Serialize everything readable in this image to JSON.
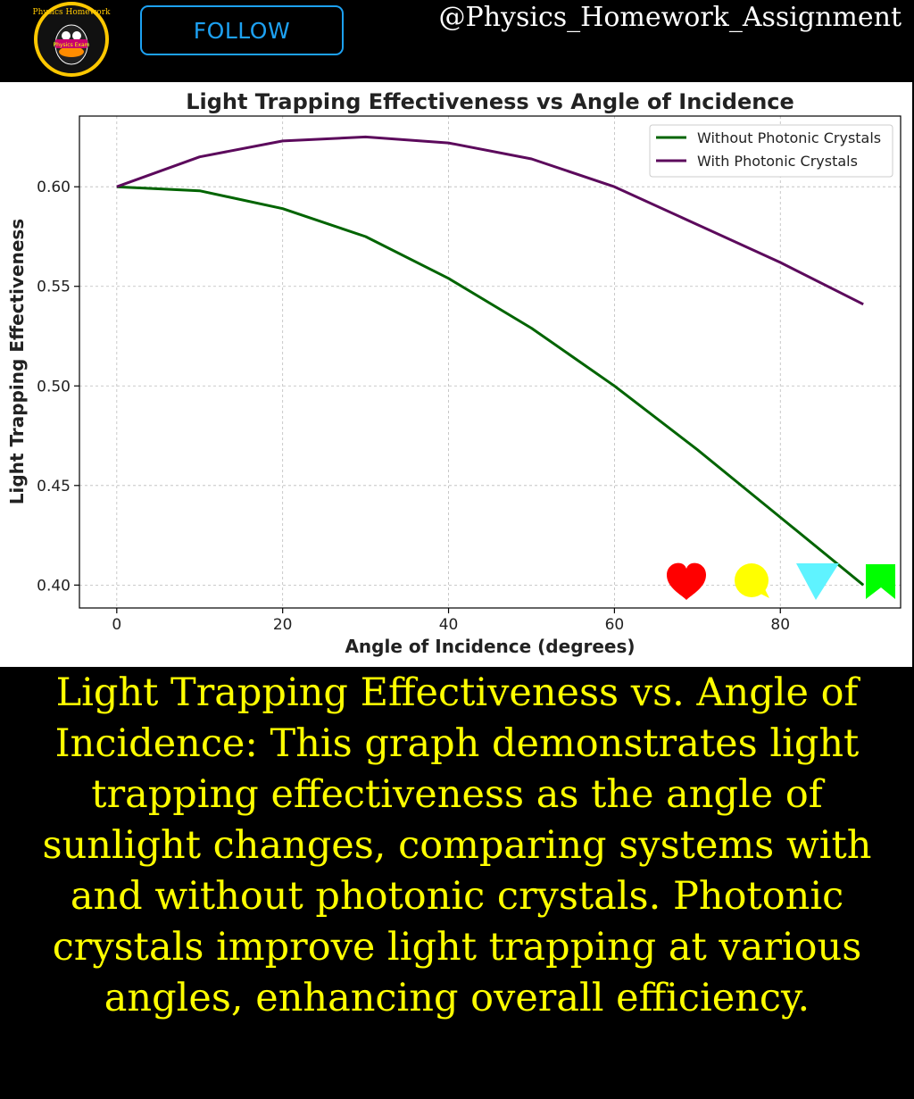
{
  "header": {
    "handle": "@Physics_Homework_Assignment",
    "follow_label": "FOLLOW",
    "avatar_text": "Physics Homework",
    "avatar_badge": "Physics Exam",
    "avatar_icon": "cartoon-duck-logo"
  },
  "chart_data": {
    "type": "line",
    "title": "Light Trapping Effectiveness vs Angle of Incidence",
    "xlabel": "Angle of Incidence (degrees)",
    "ylabel": "Light Trapping Effectiveness",
    "xlim": [
      -4.5,
      94.5
    ],
    "ylim": [
      0.3885,
      0.6355
    ],
    "xticks": [
      0,
      20,
      40,
      60,
      80
    ],
    "yticks": [
      0.4,
      0.45,
      0.5,
      0.55,
      0.6
    ],
    "grid": true,
    "legend_position": "top-right",
    "x": [
      0,
      10,
      20,
      30,
      40,
      50,
      60,
      70,
      80,
      90
    ],
    "series": [
      {
        "name": "Without Photonic Crystals",
        "color": "#006400",
        "values": [
          0.6,
          0.598,
          0.589,
          0.575,
          0.554,
          0.529,
          0.5,
          0.468,
          0.434,
          0.4
        ]
      },
      {
        "name": "With Photonic Crystals",
        "color": "#5c0a5c",
        "values": [
          0.6,
          0.615,
          0.623,
          0.625,
          0.622,
          0.614,
          0.6,
          0.581,
          0.562,
          0.541
        ]
      }
    ]
  },
  "reactions": [
    {
      "icon": "heart-icon",
      "color": "#ff0000"
    },
    {
      "icon": "speech-bubble-icon",
      "color": "#ffff00"
    },
    {
      "icon": "triangle-arrow-icon",
      "color": "#5ff3ff"
    },
    {
      "icon": "bookmark-icon",
      "color": "#00ff00"
    }
  ],
  "caption": "Light Trapping Effectiveness vs. Angle of Incidence: This graph demonstrates light trapping effectiveness as the angle of sunlight changes, comparing systems with and without photonic crystals. Photonic crystals improve light trapping at various angles, enhancing overall efficiency."
}
